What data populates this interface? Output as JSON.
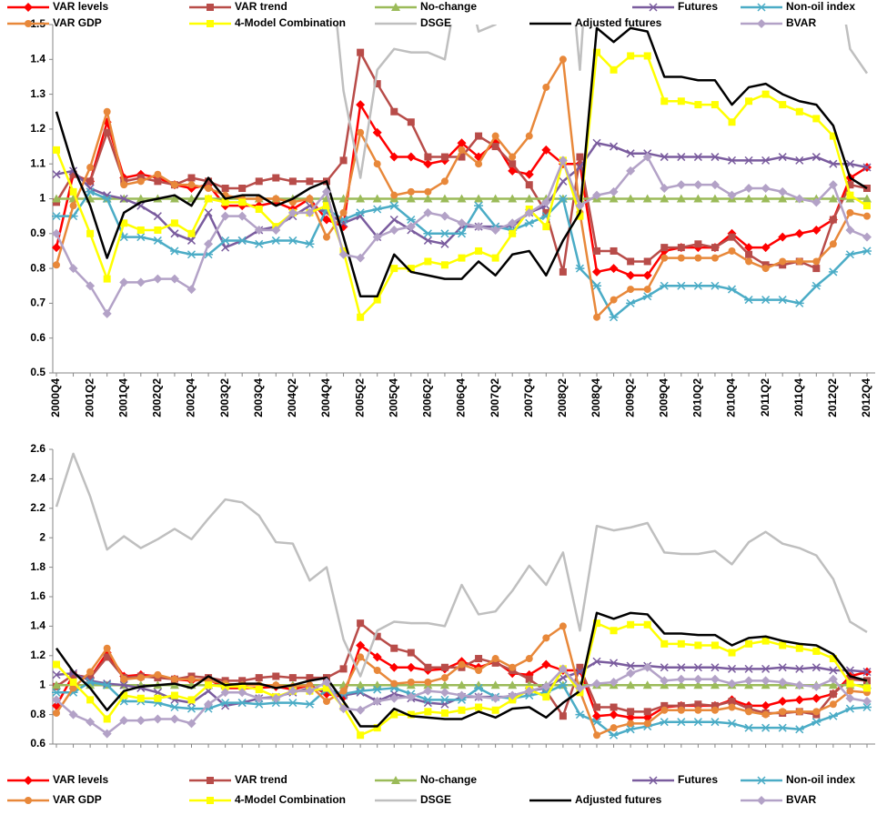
{
  "chart_data": {
    "type": "line",
    "categories": [
      "2000Q4",
      null,
      "2001Q2",
      null,
      "2001Q4",
      null,
      "2002Q2",
      null,
      "2002Q4",
      null,
      "2003Q2",
      null,
      "2003Q4",
      null,
      "2004Q2",
      null,
      "2004Q4",
      null,
      "2005Q2",
      null,
      "2005Q4",
      null,
      "2006Q2",
      null,
      "2006Q4",
      null,
      "2007Q2",
      null,
      "2007Q4",
      null,
      "2008Q2",
      null,
      "2008Q4",
      null,
      "2009Q2",
      null,
      "2009Q4",
      null,
      "2010Q2",
      null,
      "2010Q4",
      null,
      "2011Q2",
      null,
      "2011Q4",
      null,
      "2012Q2",
      null,
      "2012Q4"
    ],
    "panels": [
      {
        "ylim": [
          0.5,
          1.5
        ],
        "yticks": [
          0.5,
          0.6,
          0.7,
          0.8,
          0.9,
          1,
          1.1,
          1.2,
          1.3,
          1.4,
          1.5
        ],
        "legend": "top",
        "x_labels": true
      },
      {
        "ylim": [
          0.6,
          2.6
        ],
        "yticks": [
          0.6,
          0.8,
          1,
          1.2,
          1.4,
          1.6,
          1.8,
          2,
          2.2,
          2.4,
          2.6
        ],
        "legend": "bottom",
        "x_labels": false
      }
    ],
    "grid": false,
    "series": [
      {
        "name": "VAR levels",
        "color": "#ff0000",
        "marker": "diamond",
        "values": [
          0.86,
          1.07,
          1.05,
          1.22,
          1.06,
          1.07,
          1.06,
          1.04,
          1.03,
          1.04,
          0.98,
          0.98,
          0.98,
          0.99,
          0.97,
          1.0,
          0.94,
          0.92,
          1.27,
          1.19,
          1.12,
          1.12,
          1.1,
          1.11,
          1.16,
          1.12,
          1.16,
          1.08,
          1.07,
          1.14,
          1.1,
          1.1,
          0.79,
          0.8,
          0.78,
          0.78,
          0.85,
          0.86,
          0.86,
          0.86,
          0.9,
          0.86,
          0.86,
          0.89,
          0.9,
          0.91,
          0.94,
          1.06,
          1.09
        ]
      },
      {
        "name": "VAR trend",
        "color": "#b84c49",
        "marker": "square",
        "values": [
          0.99,
          1.07,
          1.05,
          1.19,
          1.05,
          1.06,
          1.05,
          1.04,
          1.06,
          1.05,
          1.03,
          1.03,
          1.05,
          1.06,
          1.05,
          1.05,
          1.05,
          1.11,
          1.42,
          1.33,
          1.25,
          1.22,
          1.12,
          1.12,
          1.12,
          1.18,
          1.15,
          1.1,
          1.04,
          0.96,
          0.79,
          1.12,
          0.85,
          0.85,
          0.82,
          0.82,
          0.86,
          0.86,
          0.87,
          0.86,
          0.89,
          0.84,
          0.81,
          0.81,
          0.82,
          0.8,
          0.94,
          1.04,
          1.03
        ]
      },
      {
        "name": "No-change",
        "color": "#9bbb59",
        "marker": "triangle",
        "values": [
          1,
          1,
          1,
          1,
          1,
          1,
          1,
          1,
          1,
          1,
          1,
          1,
          1,
          1,
          1,
          1,
          1,
          1,
          1,
          1,
          1,
          1,
          1,
          1,
          1,
          1,
          1,
          1,
          1,
          1,
          1,
          1,
          1,
          1,
          1,
          1,
          1,
          1,
          1,
          1,
          1,
          1,
          1,
          1,
          1,
          1,
          1,
          1,
          1
        ]
      },
      {
        "name": "Futures",
        "color": "#7a5c9e",
        "marker": "x",
        "values": [
          1.07,
          1.08,
          1.03,
          1.01,
          1.0,
          0.98,
          0.95,
          0.9,
          0.88,
          0.96,
          0.86,
          0.88,
          0.91,
          0.92,
          0.95,
          0.98,
          0.96,
          0.93,
          0.95,
          0.89,
          0.94,
          0.91,
          0.88,
          0.87,
          0.92,
          0.92,
          0.92,
          0.92,
          0.96,
          0.98,
          1.05,
          1.09,
          1.16,
          1.15,
          1.13,
          1.13,
          1.12,
          1.12,
          1.12,
          1.12,
          1.11,
          1.11,
          1.11,
          1.12,
          1.11,
          1.12,
          1.1,
          1.1,
          1.09
        ]
      },
      {
        "name": "Non-oil index",
        "color": "#4bacc6",
        "marker": "star",
        "values": [
          0.95,
          0.95,
          1.02,
          1.0,
          0.89,
          0.89,
          0.88,
          0.85,
          0.84,
          0.84,
          0.88,
          0.88,
          0.87,
          0.88,
          0.88,
          0.87,
          0.97,
          0.94,
          0.96,
          0.97,
          0.98,
          0.94,
          0.9,
          0.9,
          0.9,
          0.98,
          0.92,
          0.91,
          0.93,
          0.95,
          1.0,
          0.8,
          0.75,
          0.66,
          0.7,
          0.72,
          0.75,
          0.75,
          0.75,
          0.75,
          0.74,
          0.71,
          0.71,
          0.71,
          0.7,
          0.75,
          0.79,
          0.84,
          0.85
        ]
      },
      {
        "name": "VAR GDP",
        "color": "#e8883a",
        "marker": "circle",
        "values": [
          0.81,
          0.98,
          1.09,
          1.25,
          1.04,
          1.05,
          1.07,
          1.04,
          1.04,
          1.03,
          1.01,
          1.0,
          1.0,
          1.0,
          0.99,
          1.0,
          0.89,
          0.96,
          1.19,
          1.1,
          1.01,
          1.02,
          1.02,
          1.05,
          1.14,
          1.1,
          1.18,
          1.12,
          1.18,
          1.32,
          1.4,
          0.96,
          0.66,
          0.71,
          0.74,
          0.74,
          0.83,
          0.83,
          0.83,
          0.83,
          0.85,
          0.82,
          0.8,
          0.82,
          0.82,
          0.82,
          0.87,
          0.96,
          0.95
        ]
      },
      {
        "name": "4-Model Combination",
        "color": "#ffff00",
        "marker": "square",
        "values": [
          1.14,
          1.02,
          0.9,
          0.77,
          0.93,
          0.91,
          0.91,
          0.93,
          0.9,
          1.0,
          0.99,
          0.99,
          0.97,
          0.92,
          0.96,
          0.96,
          0.98,
          0.85,
          0.66,
          0.71,
          0.8,
          0.8,
          0.82,
          0.81,
          0.83,
          0.85,
          0.83,
          0.9,
          0.97,
          0.92,
          1.11,
          0.95,
          1.42,
          1.37,
          1.41,
          1.41,
          1.28,
          1.28,
          1.27,
          1.27,
          1.22,
          1.28,
          1.3,
          1.27,
          1.25,
          1.23,
          1.18,
          1.01,
          0.98
        ]
      },
      {
        "name": "DSGE",
        "color": "#bfbfbf",
        "marker": "none",
        "values": [
          2.21,
          2.57,
          2.28,
          1.92,
          2.01,
          1.93,
          1.99,
          2.06,
          1.99,
          2.13,
          2.26,
          2.24,
          2.15,
          1.97,
          1.96,
          1.71,
          1.8,
          1.31,
          1.06,
          1.37,
          1.43,
          1.42,
          1.42,
          1.4,
          1.68,
          1.48,
          1.5,
          1.64,
          1.81,
          1.68,
          1.9,
          1.37,
          2.08,
          2.05,
          2.07,
          2.1,
          1.9,
          1.89,
          1.89,
          1.91,
          1.82,
          1.97,
          2.04,
          1.96,
          1.93,
          1.88,
          1.72,
          1.43,
          1.36
        ]
      },
      {
        "name": "Adjusted futures",
        "color": "#000000",
        "marker": "none",
        "values": [
          1.25,
          1.09,
          0.98,
          0.83,
          0.96,
          0.99,
          1.0,
          1.01,
          0.98,
          1.06,
          1.0,
          1.01,
          1.01,
          0.98,
          1.0,
          1.03,
          1.05,
          0.89,
          0.72,
          0.72,
          0.84,
          0.79,
          0.78,
          0.77,
          0.77,
          0.82,
          0.78,
          0.84,
          0.85,
          0.78,
          0.88,
          0.96,
          1.49,
          1.45,
          1.49,
          1.48,
          1.35,
          1.35,
          1.34,
          1.34,
          1.27,
          1.32,
          1.33,
          1.3,
          1.28,
          1.27,
          1.21,
          1.06,
          1.03
        ]
      },
      {
        "name": "BVAR",
        "color": "#b3a2c7",
        "marker": "diamond",
        "values": [
          0.9,
          0.8,
          0.75,
          0.67,
          0.76,
          0.76,
          0.77,
          0.77,
          0.74,
          0.87,
          0.95,
          0.95,
          0.91,
          0.91,
          0.96,
          0.96,
          1.02,
          0.84,
          0.83,
          0.89,
          0.91,
          0.92,
          0.96,
          0.95,
          0.93,
          0.92,
          0.91,
          0.93,
          0.96,
          0.99,
          1.11,
          0.98,
          1.01,
          1.02,
          1.08,
          1.12,
          1.03,
          1.04,
          1.04,
          1.04,
          1.01,
          1.03,
          1.03,
          1.02,
          1.0,
          0.99,
          1.04,
          0.91,
          0.89
        ]
      }
    ]
  }
}
